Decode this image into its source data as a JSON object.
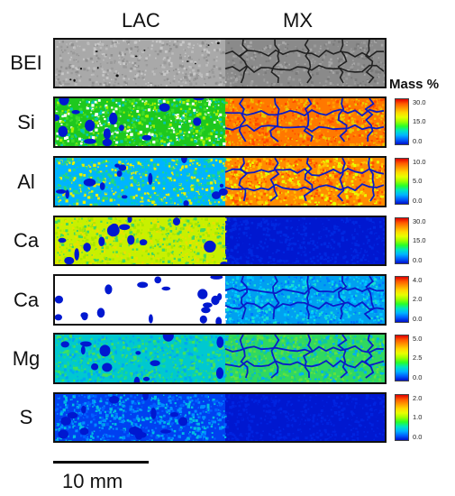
{
  "columns": {
    "left": "LAC",
    "right": "MX"
  },
  "legend_title": "Mass %",
  "rows": [
    {
      "label": "BEI",
      "kind": "bei"
    },
    {
      "label": "Si",
      "scale": [
        "30.0",
        "15.0",
        "0.0"
      ],
      "left_colors": [
        "#1ec81e",
        "#3cdc28",
        "#a8f000",
        "#00c8b4",
        "#ffffff"
      ],
      "right_colors": [
        "#ff7800",
        "#ff9c00",
        "#e8c800",
        "#ff4a00"
      ]
    },
    {
      "label": "Al",
      "scale": [
        "10.0",
        "5.0",
        "0.0"
      ],
      "left_colors": [
        "#00b4ff",
        "#00c8c8",
        "#28d878",
        "#e8f000"
      ],
      "right_colors": [
        "#ff8c00",
        "#ffc000",
        "#e8ff00",
        "#ff5000"
      ]
    },
    {
      "label": "Ca",
      "scale": [
        "30.0",
        "15.0",
        "0.0"
      ],
      "left_colors": [
        "#c8f000",
        "#a8e800",
        "#40d860",
        "#e8e000"
      ],
      "right_colors": [
        "#0018d0",
        "#0028e0"
      ]
    },
    {
      "label": "Ca",
      "scale": [
        "4.0",
        "2.0",
        "0.0"
      ],
      "left_colors": [
        "#ffffff"
      ],
      "right_colors": [
        "#00a0f0",
        "#0078ff",
        "#00c8ff",
        "#18e0d0"
      ]
    },
    {
      "label": "Mg",
      "scale": [
        "5.0",
        "2.5",
        "0.0"
      ],
      "left_colors": [
        "#00c8d0",
        "#18d890",
        "#40e060",
        "#00a8f0"
      ],
      "right_colors": [
        "#30d860",
        "#10c8a0",
        "#00b0f0",
        "#60e040"
      ]
    },
    {
      "label": "S",
      "scale": [
        "2.0",
        "1.0",
        "0.0"
      ],
      "left_colors": [
        "#0040f0",
        "#0060ff",
        "#0090ff",
        "#00c0e0"
      ],
      "right_colors": [
        "#0018d0",
        "#0024e0"
      ]
    }
  ],
  "scale_bar": {
    "label": "10 mm"
  }
}
